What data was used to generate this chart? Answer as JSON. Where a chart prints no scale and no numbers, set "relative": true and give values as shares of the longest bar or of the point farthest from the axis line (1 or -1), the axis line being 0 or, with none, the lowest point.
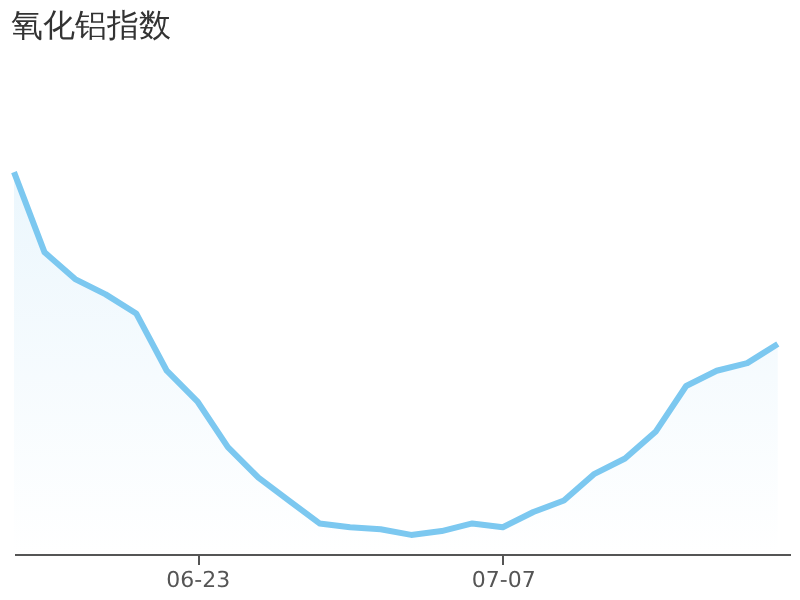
{
  "chart_data": {
    "type": "area",
    "title": "氧化铝指数",
    "relative": true,
    "categories": [
      null,
      null,
      null,
      null,
      null,
      null,
      "06-23",
      null,
      null,
      null,
      null,
      null,
      null,
      null,
      null,
      null,
      "07-07",
      null,
      null,
      null,
      null,
      null,
      null,
      null,
      null,
      null
    ],
    "series": [
      {
        "color": "#7cc8f0",
        "values": [
          1.0,
          0.79,
          0.72,
          0.68,
          0.63,
          0.48,
          0.4,
          0.28,
          0.2,
          0.14,
          0.08,
          0.07,
          0.065,
          0.05,
          0.06,
          0.08,
          0.07,
          0.11,
          0.14,
          0.21,
          0.25,
          0.32,
          0.44,
          0.48,
          0.5,
          0.55
        ]
      }
    ]
  }
}
